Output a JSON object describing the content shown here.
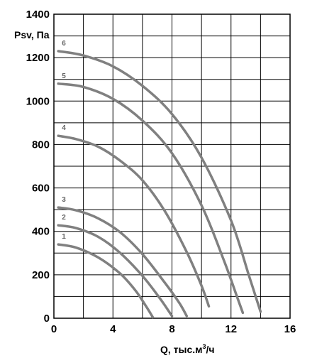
{
  "chart_data": {
    "type": "line",
    "ylabel": "Psv, Па",
    "xlabel_main": "Q, тыс.м",
    "xlabel_sup": "3",
    "xlabel_tail": "/ч",
    "xlim": [
      0,
      16
    ],
    "ylim": [
      0,
      1400
    ],
    "x_ticks": [
      0,
      4,
      8,
      12,
      16
    ],
    "x_tick_labels": [
      "0",
      "4",
      "8",
      "12",
      "16"
    ],
    "x_grid_step": 2,
    "y_ticks": [
      0,
      200,
      400,
      600,
      800,
      1000,
      1200,
      1400
    ],
    "y_tick_labels": [
      "0",
      "200",
      "400",
      "600",
      "800",
      "1000",
      "1200",
      "1400"
    ],
    "y_grid_step": 100,
    "grid": true,
    "line_color": "#808080",
    "series": [
      {
        "name": "1",
        "points": [
          [
            0.3,
            340
          ],
          [
            1.5,
            325
          ],
          [
            3.0,
            280
          ],
          [
            4.5,
            205
          ],
          [
            5.5,
            130
          ],
          [
            6.2,
            60
          ],
          [
            6.7,
            5
          ]
        ]
      },
      {
        "name": "2",
        "points": [
          [
            0.3,
            428
          ],
          [
            1.5,
            415
          ],
          [
            3.0,
            375
          ],
          [
            4.5,
            300
          ],
          [
            6.0,
            195
          ],
          [
            7.2,
            90
          ],
          [
            8.0,
            10
          ]
        ]
      },
      {
        "name": "3",
        "points": [
          [
            0.3,
            510
          ],
          [
            1.5,
            497
          ],
          [
            3.0,
            460
          ],
          [
            4.5,
            395
          ],
          [
            6.0,
            295
          ],
          [
            7.5,
            165
          ],
          [
            8.5,
            70
          ],
          [
            9.0,
            10
          ]
        ]
      },
      {
        "name": "4",
        "points": [
          [
            0.3,
            840
          ],
          [
            1.5,
            825
          ],
          [
            3.0,
            790
          ],
          [
            4.5,
            725
          ],
          [
            6.0,
            635
          ],
          [
            7.5,
            495
          ],
          [
            9.0,
            305
          ],
          [
            10.0,
            150
          ],
          [
            10.5,
            55
          ]
        ]
      },
      {
        "name": "5",
        "points": [
          [
            0.3,
            1080
          ],
          [
            2.0,
            1065
          ],
          [
            4.0,
            1010
          ],
          [
            6.0,
            910
          ],
          [
            8.0,
            760
          ],
          [
            10.0,
            520
          ],
          [
            11.5,
            270
          ],
          [
            12.4,
            100
          ],
          [
            12.8,
            25
          ]
        ]
      },
      {
        "name": "6",
        "points": [
          [
            0.3,
            1230
          ],
          [
            2.0,
            1210
          ],
          [
            4.0,
            1160
          ],
          [
            6.0,
            1070
          ],
          [
            8.0,
            940
          ],
          [
            10.0,
            740
          ],
          [
            12.0,
            450
          ],
          [
            13.2,
            200
          ],
          [
            14.0,
            30
          ]
        ]
      }
    ]
  }
}
